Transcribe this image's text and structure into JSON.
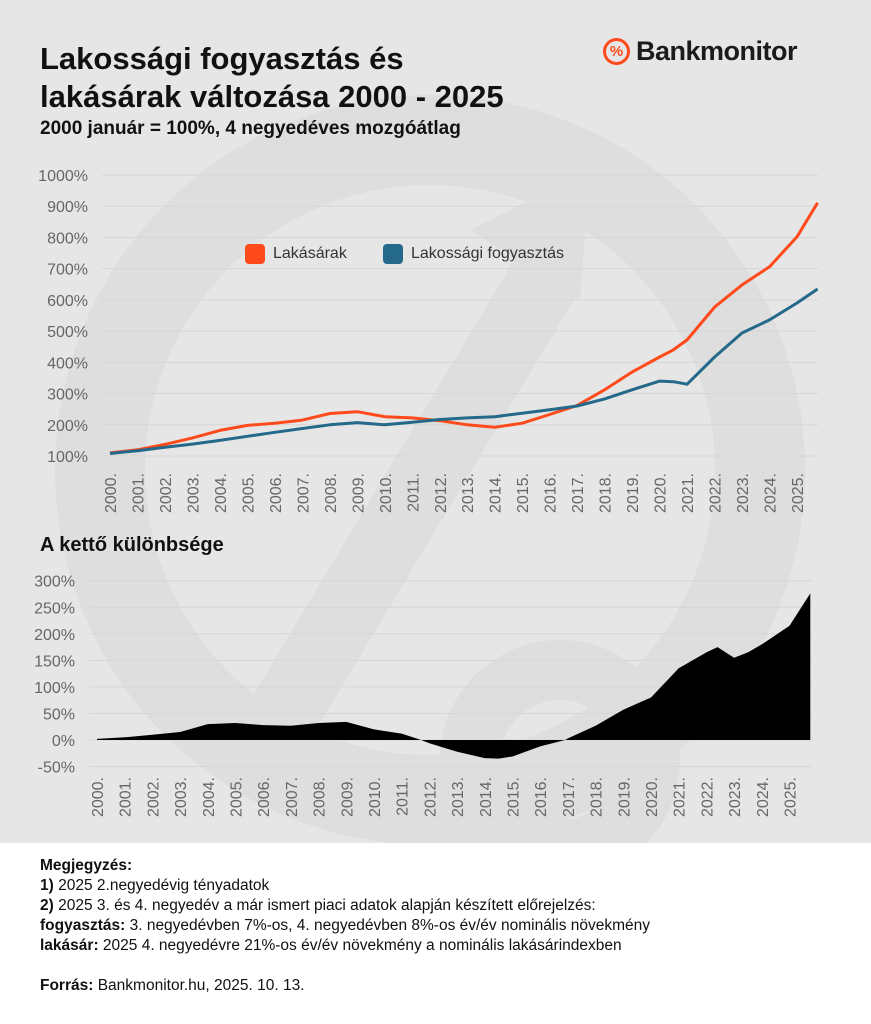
{
  "title": "Lakossági fogyasztás és lakásárak változása 2000 - 2025",
  "subtitle": "2000 január = 100%, 4 negyedéves mozgóátlag",
  "logo": {
    "text": "Bankmonitor",
    "symbol": "%"
  },
  "chart_data": [
    {
      "type": "line",
      "title": "Lakossági fogyasztás és lakásárak változása 2000 - 2025",
      "subtitle": "2000 január = 100%, 4 negyedéves mozgóátlag",
      "yticks": [
        "100%",
        "200%",
        "300%",
        "400%",
        "500%",
        "600%",
        "700%",
        "800%",
        "900%",
        "1000%"
      ],
      "ylim": [
        100,
        1000
      ],
      "xticks": [
        "2000.",
        "2001.",
        "2002.",
        "2003.",
        "2004.",
        "2005.",
        "2006.",
        "2007.",
        "2008.",
        "2009.",
        "2010.",
        "2011.",
        "2012.",
        "2013.",
        "2014.",
        "2015.",
        "2016.",
        "2017.",
        "2018.",
        "2019.",
        "2020.",
        "2021.",
        "2022.",
        "2023.",
        "2024.",
        "2025."
      ],
      "grid": true,
      "legend": "top-center",
      "x": [
        2000,
        2001,
        2002,
        2003,
        2004,
        2005,
        2006,
        2007,
        2008,
        2009,
        2010,
        2011,
        2012,
        2013,
        2014,
        2015,
        2016,
        2017,
        2018,
        2019,
        2020,
        2020.5,
        2021,
        2022,
        2023,
        2024,
        2025,
        2025.75
      ],
      "series": [
        {
          "name": "Lakásárak",
          "color": "#ff4a1c",
          "values": [
            110,
            120,
            137,
            158,
            182,
            198,
            205,
            215,
            236,
            242,
            226,
            222,
            213,
            200,
            192,
            205,
            233,
            262,
            312,
            369,
            417,
            440,
            472,
            577,
            648,
            706,
            802,
            911
          ]
        },
        {
          "name": "Lakossági fogyasztás",
          "color": "#24698a",
          "values": [
            108,
            117,
            128,
            138,
            150,
            163,
            176,
            188,
            200,
            207,
            200,
            208,
            217,
            222,
            226,
            237,
            248,
            260,
            283,
            312,
            340,
            338,
            330,
            417,
            494,
            536,
            590,
            635
          ]
        }
      ]
    },
    {
      "type": "area",
      "title": "A kettő különbsége",
      "yticks": [
        "-50%",
        "0%",
        "50%",
        "100%",
        "150%",
        "200%",
        "250%",
        "300%"
      ],
      "ylim": [
        -50,
        300
      ],
      "xticks": [
        "2000.",
        "2001.",
        "2002.",
        "2003.",
        "2004.",
        "2005.",
        "2006.",
        "2007.",
        "2008.",
        "2009.",
        "2010.",
        "2011.",
        "2012.",
        "2013.",
        "2014.",
        "2015.",
        "2016.",
        "2017.",
        "2018.",
        "2019.",
        "2020.",
        "2021.",
        "2022.",
        "2023.",
        "2024.",
        "2025."
      ],
      "grid": true,
      "color": "#000000",
      "x": [
        2000,
        2001,
        2002,
        2003,
        2004,
        2005,
        2006,
        2007,
        2008,
        2009,
        2010,
        2011,
        2011.7,
        2012,
        2013,
        2014,
        2014.5,
        2015,
        2016,
        2016.9,
        2017,
        2018,
        2019,
        2020,
        2021,
        2022,
        2022.4,
        2023,
        2023.5,
        2024,
        2025,
        2025.75
      ],
      "values": [
        2,
        5,
        10,
        15,
        30,
        32,
        28,
        27,
        32,
        34,
        20,
        12,
        0,
        -6,
        -22,
        -34,
        -35,
        -31,
        -12,
        0,
        3,
        27,
        57,
        80,
        135,
        165,
        175,
        155,
        165,
        180,
        215,
        276
      ]
    }
  ],
  "notes": {
    "heading": "Megjegyzés:",
    "lines": [
      {
        "label": "1)",
        "text": " 2025 2.negyedévig tényadatok"
      },
      {
        "label": "2)",
        "text": " 2025 3. és 4. negyedév a már ismert piaci adatok alapján készített előrejelzés:"
      },
      {
        "label": "fogyasztás:",
        "text": " 3. negyedévben 7%-os, 4. negyedévben 8%-os év/év nominális növekmény"
      },
      {
        "label": "lakásár:",
        "text": " 2025 4. negyedévre 21%-os év/év növekmény a nominális lakásárindexben"
      }
    ],
    "source_label": "Forrás:",
    "source_text": " Bankmonitor.hu, 2025. 10. 13."
  }
}
